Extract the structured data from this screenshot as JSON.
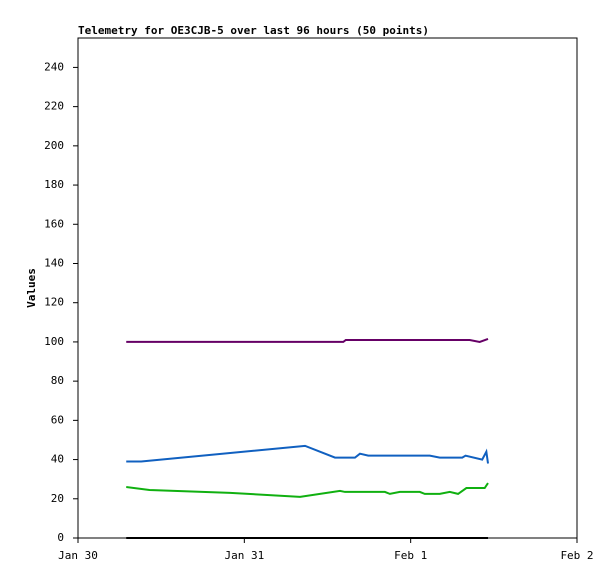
{
  "chart_data": {
    "type": "line",
    "title": "Telemetry for OE3CJB-5 over last 96 hours (50 points)",
    "ylabel": "Values",
    "xlim": [
      0,
      3
    ],
    "xticks": [
      {
        "value": 0,
        "label": "Jan 30"
      },
      {
        "value": 1,
        "label": "Jan 31"
      },
      {
        "value": 2,
        "label": "Feb 1"
      },
      {
        "value": 3,
        "label": "Feb 2"
      }
    ],
    "ylim": [
      0,
      255
    ],
    "yticks": [
      0,
      20,
      40,
      60,
      80,
      100,
      120,
      140,
      160,
      180,
      200,
      220,
      240
    ],
    "grid": false,
    "series": [
      {
        "color": "#660066",
        "x": [
          0.29,
          1.595,
          1.61,
          2.355,
          2.415,
          2.465
        ],
        "values": [
          100,
          100,
          101,
          101,
          100,
          101.5
        ]
      },
      {
        "color": "#1060c0",
        "x": [
          0.29,
          0.38,
          1.365,
          1.545,
          1.665,
          1.695,
          1.745,
          2.115,
          2.175,
          2.31,
          2.33,
          2.43,
          2.455,
          2.465
        ],
        "values": [
          39,
          39,
          47,
          41,
          41,
          43,
          42,
          42,
          41,
          41,
          42,
          40,
          44,
          38
        ]
      },
      {
        "color": "#10b010",
        "x": [
          0.29,
          0.43,
          0.915,
          1.335,
          1.575,
          1.605,
          1.845,
          1.875,
          1.935,
          2.055,
          2.085,
          2.175,
          2.235,
          2.285,
          2.335,
          2.445,
          2.465
        ],
        "values": [
          26,
          24.5,
          23,
          21,
          24,
          23.5,
          23.5,
          22.5,
          23.5,
          23.5,
          22.5,
          22.5,
          23.5,
          22.5,
          25.5,
          25.5,
          28
        ]
      },
      {
        "color": "#000000",
        "x": [
          0.29,
          2.465
        ],
        "values": [
          0,
          0
        ]
      }
    ]
  }
}
